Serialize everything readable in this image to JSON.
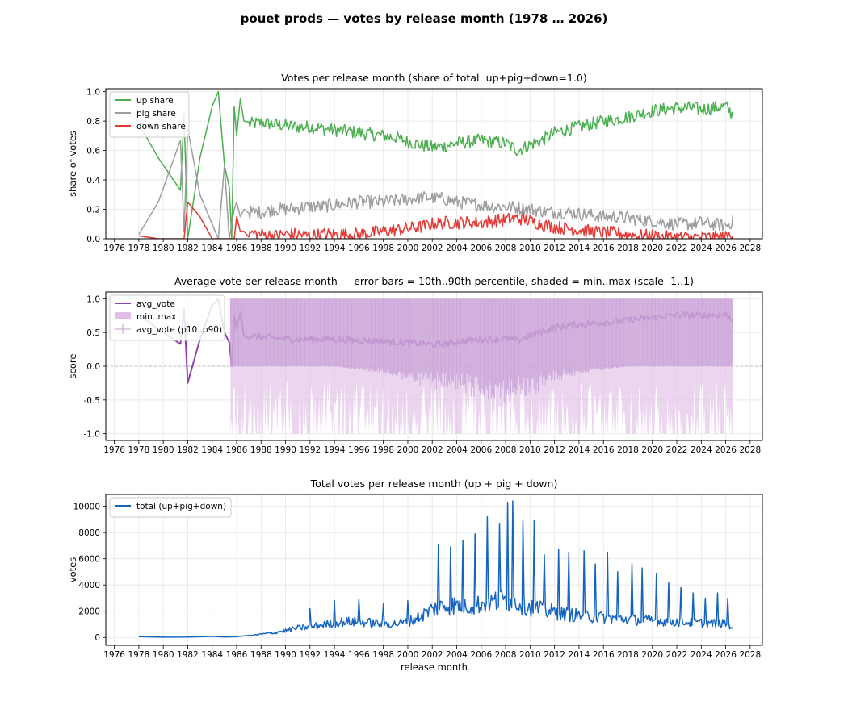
{
  "figure": {
    "suptitle": "pouet prods — votes by release month (1978 … 2026)"
  },
  "chart_data": [
    {
      "type": "line",
      "title": "Votes per release month (share of total: up+pig+down=1.0)",
      "xlabel": "",
      "ylabel": "share of votes",
      "xlim": [
        1975.3,
        2029.0
      ],
      "ylim": [
        0,
        1.02
      ],
      "xticks": [
        1976,
        1978,
        1980,
        1982,
        1984,
        1986,
        1988,
        1990,
        1992,
        1994,
        1996,
        1998,
        2000,
        2002,
        2004,
        2006,
        2008,
        2010,
        2012,
        2014,
        2016,
        2018,
        2020,
        2022,
        2024,
        2026,
        2028
      ],
      "yticks": [
        0.0,
        0.2,
        0.4,
        0.6,
        0.8,
        1.0
      ],
      "grid": true,
      "legend": "top-left",
      "series": [
        {
          "name": "up share",
          "color": "#4caf50",
          "x": [
            1978.0,
            1979.6,
            1981.4,
            1981.7,
            1982.0,
            1983.0,
            1984.0,
            1984.5,
            1985.0,
            1985.4,
            1985.6,
            1985.8,
            1986.0,
            1986.3,
            1986.6,
            1987.0,
            1988,
            1989,
            1990,
            1991,
            1992,
            1993,
            1994,
            1995,
            1996,
            1997,
            1998,
            1999,
            2000,
            2001,
            2002,
            2003,
            2004,
            2005,
            2006,
            2007,
            2008,
            2009,
            2010,
            2011,
            2012,
            2013,
            2014,
            2015,
            2016,
            2017,
            2018,
            2019,
            2020,
            2021,
            2022,
            2023,
            2024,
            2025,
            2026,
            2026.6
          ],
          "y": [
            0.78,
            0.55,
            0.33,
            0.85,
            0.0,
            0.55,
            0.9,
            1.0,
            0.5,
            0.35,
            0.0,
            0.9,
            0.7,
            0.95,
            0.8,
            0.78,
            0.79,
            0.78,
            0.77,
            0.76,
            0.76,
            0.75,
            0.74,
            0.73,
            0.72,
            0.71,
            0.7,
            0.69,
            0.66,
            0.64,
            0.62,
            0.63,
            0.65,
            0.66,
            0.67,
            0.66,
            0.65,
            0.6,
            0.64,
            0.67,
            0.72,
            0.74,
            0.76,
            0.78,
            0.8,
            0.81,
            0.83,
            0.85,
            0.87,
            0.88,
            0.89,
            0.89,
            0.88,
            0.89,
            0.9,
            0.84
          ]
        },
        {
          "name": "pig share",
          "color": "#9e9e9e",
          "x": [
            1978.0,
            1979.6,
            1981.4,
            1981.7,
            1982.0,
            1983.0,
            1984.0,
            1984.5,
            1985.0,
            1985.4,
            1985.6,
            1985.8,
            1986.0,
            1986.3,
            1986.6,
            1987.0,
            1988,
            1989,
            1990,
            1991,
            1992,
            1993,
            1994,
            1995,
            1996,
            1997,
            1998,
            1999,
            2000,
            2001,
            2002,
            2003,
            2004,
            2005,
            2006,
            2007,
            2008,
            2009,
            2010,
            2011,
            2012,
            2013,
            2014,
            2015,
            2016,
            2017,
            2018,
            2019,
            2020,
            2021,
            2022,
            2023,
            2024,
            2025,
            2026,
            2026.6
          ],
          "y": [
            0.03,
            0.25,
            0.67,
            0.05,
            0.75,
            0.3,
            0.1,
            0.0,
            0.5,
            0.0,
            0.1,
            0.2,
            0.25,
            0.15,
            0.2,
            0.18,
            0.18,
            0.2,
            0.2,
            0.21,
            0.22,
            0.22,
            0.23,
            0.24,
            0.25,
            0.25,
            0.25,
            0.26,
            0.27,
            0.28,
            0.28,
            0.27,
            0.25,
            0.24,
            0.23,
            0.22,
            0.22,
            0.21,
            0.2,
            0.19,
            0.18,
            0.18,
            0.17,
            0.16,
            0.15,
            0.15,
            0.14,
            0.13,
            0.12,
            0.11,
            0.1,
            0.1,
            0.11,
            0.1,
            0.09,
            0.12
          ]
        },
        {
          "name": "down share",
          "color": "#e53935",
          "x": [
            1978.0,
            1979.6,
            1981.4,
            1981.7,
            1982.0,
            1983.0,
            1984.0,
            1984.5,
            1985.0,
            1985.4,
            1985.6,
            1985.8,
            1986.0,
            1986.3,
            1986.6,
            1987.0,
            1988,
            1989,
            1990,
            1991,
            1992,
            1993,
            1994,
            1995,
            1996,
            1997,
            1998,
            1999,
            2000,
            2001,
            2002,
            2003,
            2004,
            2005,
            2006,
            2007,
            2008,
            2009,
            2010,
            2011,
            2012,
            2013,
            2014,
            2015,
            2016,
            2017,
            2018,
            2019,
            2020,
            2021,
            2022,
            2023,
            2024,
            2025,
            2026,
            2026.6
          ],
          "y": [
            0.02,
            0.0,
            0.0,
            0.0,
            0.25,
            0.15,
            0.0,
            0.0,
            0.0,
            0.0,
            0.0,
            0.0,
            0.15,
            0.05,
            0.05,
            0.04,
            0.03,
            0.02,
            0.03,
            0.03,
            0.02,
            0.03,
            0.03,
            0.03,
            0.03,
            0.04,
            0.05,
            0.06,
            0.07,
            0.08,
            0.1,
            0.11,
            0.11,
            0.11,
            0.11,
            0.12,
            0.13,
            0.14,
            0.12,
            0.1,
            0.08,
            0.07,
            0.06,
            0.05,
            0.04,
            0.04,
            0.03,
            0.02,
            0.02,
            0.01,
            0.01,
            0.01,
            0.01,
            0.01,
            0.01,
            0.04
          ]
        }
      ]
    },
    {
      "type": "line",
      "title": "Average vote per release month — error bars = 10th..90th percentile, shaded = min..max (scale -1..1)",
      "xlabel": "",
      "ylabel": "score",
      "xlim": [
        1975.3,
        2029.0
      ],
      "ylim": [
        -1.1,
        1.1
      ],
      "xticks": [
        1976,
        1978,
        1980,
        1982,
        1984,
        1986,
        1988,
        1990,
        1992,
        1994,
        1996,
        1998,
        2000,
        2002,
        2004,
        2006,
        2008,
        2010,
        2012,
        2014,
        2016,
        2018,
        2020,
        2022,
        2024,
        2026,
        2028
      ],
      "yticks": [
        -1.0,
        -0.5,
        0.0,
        0.5,
        1.0
      ],
      "grid": true,
      "legend": "top-left",
      "reference_line": 0.0,
      "series": [
        {
          "name": "avg_vote",
          "color": "#8e44ad",
          "x": [
            1978.0,
            1979.6,
            1981.4,
            1981.7,
            1982.0,
            1983.0,
            1984.0,
            1984.5,
            1985.0,
            1985.4,
            1985.6,
            1985.8,
            1986.0,
            1986.3,
            1986.6,
            1987.0,
            1988,
            1989,
            1990,
            1991,
            1992,
            1993,
            1994,
            1995,
            1996,
            1997,
            1998,
            1999,
            2000,
            2001,
            2002,
            2003,
            2004,
            2005,
            2006,
            2007,
            2008,
            2009,
            2010,
            2011,
            2012,
            2013,
            2014,
            2015,
            2016,
            2017,
            2018,
            2019,
            2020,
            2021,
            2022,
            2023,
            2024,
            2025,
            2026,
            2026.6
          ],
          "y": [
            0.76,
            0.55,
            0.33,
            0.85,
            -0.25,
            0.4,
            0.9,
            1.0,
            0.5,
            0.35,
            0.0,
            0.75,
            0.55,
            0.8,
            0.45,
            0.45,
            0.43,
            0.42,
            0.4,
            0.4,
            0.4,
            0.4,
            0.4,
            0.39,
            0.38,
            0.38,
            0.37,
            0.36,
            0.35,
            0.34,
            0.32,
            0.33,
            0.36,
            0.38,
            0.4,
            0.4,
            0.41,
            0.38,
            0.45,
            0.52,
            0.57,
            0.6,
            0.62,
            0.63,
            0.65,
            0.66,
            0.68,
            0.7,
            0.72,
            0.74,
            0.76,
            0.76,
            0.75,
            0.76,
            0.76,
            0.7
          ]
        },
        {
          "name": "min..max",
          "color": "#e1bee7",
          "x": [
            1985.5,
            1986,
            1988,
            1990,
            1992,
            1994,
            1996,
            1998,
            2000,
            2002,
            2004,
            2006,
            2008,
            2010,
            2012,
            2014,
            2016,
            2018,
            2020,
            2022,
            2024,
            2026,
            2026.6
          ],
          "low": [
            -1.0,
            -1.0,
            -1.0,
            -1.0,
            -1.0,
            -1.0,
            -1.0,
            -1.0,
            -1.0,
            -1.0,
            -1.0,
            -1.0,
            -1.0,
            -1.0,
            -1.0,
            -1.0,
            -1.0,
            -1.0,
            -1.0,
            -1.0,
            -1.0,
            -1.0,
            -1.0
          ],
          "high": [
            1.0,
            1.0,
            1.0,
            1.0,
            1.0,
            1.0,
            1.0,
            1.0,
            1.0,
            1.0,
            1.0,
            1.0,
            1.0,
            1.0,
            1.0,
            1.0,
            1.0,
            1.0,
            1.0,
            1.0,
            1.0,
            1.0,
            1.0
          ]
        },
        {
          "name": "avg_vote (p10..p90)",
          "color": "#c39bd3",
          "x": [
            1985.5,
            1986,
            1988,
            1990,
            1992,
            1994,
            1996,
            1998,
            2000,
            2002,
            2004,
            2006,
            2008,
            2010,
            2012,
            2014,
            2016,
            2018,
            2020,
            2022,
            2024,
            2026,
            2026.6
          ],
          "low": [
            0.0,
            0.0,
            0.0,
            0.0,
            0.0,
            0.0,
            -0.05,
            -0.1,
            -0.2,
            -0.3,
            -0.35,
            -0.4,
            -0.45,
            -0.4,
            -0.2,
            -0.1,
            -0.05,
            0.0,
            0.0,
            0.0,
            0.0,
            0.0,
            0.0
          ],
          "high": [
            1.0,
            1.0,
            1.0,
            1.0,
            1.0,
            1.0,
            1.0,
            1.0,
            1.0,
            1.0,
            1.0,
            1.0,
            1.0,
            1.0,
            1.0,
            1.0,
            1.0,
            1.0,
            1.0,
            1.0,
            1.0,
            1.0,
            1.0
          ]
        }
      ]
    },
    {
      "type": "line",
      "title": "Total votes per release month (up + pig + down)",
      "xlabel": "release month",
      "ylabel": "votes",
      "xlim": [
        1975.3,
        2029.0
      ],
      "ylim": [
        -600,
        10900
      ],
      "xticks": [
        1976,
        1978,
        1980,
        1982,
        1984,
        1986,
        1988,
        1990,
        1992,
        1994,
        1996,
        1998,
        2000,
        2002,
        2004,
        2006,
        2008,
        2010,
        2012,
        2014,
        2016,
        2018,
        2020,
        2022,
        2024,
        2026,
        2028
      ],
      "yticks": [
        0,
        2000,
        4000,
        6000,
        8000,
        10000
      ],
      "grid": true,
      "legend": "top-left",
      "series": [
        {
          "name": "total (up+pig+down)",
          "color": "#1565c0",
          "x": [
            1978.0,
            1980,
            1982,
            1984,
            1985,
            1986,
            1987,
            1988,
            1989,
            1990,
            1991,
            1992,
            1993,
            1994,
            1995,
            1996,
            1997,
            1998,
            1999,
            2000,
            2001,
            2002,
            2003,
            2004,
            2005,
            2006,
            2007,
            2008,
            2009,
            2010,
            2011,
            2012,
            2013,
            2014,
            2015,
            2016,
            2017,
            2018,
            2019,
            2020,
            2021,
            2022,
            2023,
            2024,
            2025,
            2026,
            2026.6
          ],
          "y": [
            60,
            20,
            30,
            80,
            40,
            60,
            150,
            300,
            450,
            650,
            900,
            1000,
            1200,
            1400,
            1500,
            1500,
            1400,
            1300,
            1300,
            1500,
            2000,
            2700,
            3000,
            3100,
            3000,
            3200,
            3400,
            3600,
            3300,
            2900,
            2600,
            2400,
            2200,
            2100,
            2000,
            1900,
            1850,
            1750,
            1650,
            1600,
            1550,
            1500,
            1450,
            1400,
            1350,
            1300,
            1000
          ],
          "peaks": [
            [
              1992.0,
              2200
            ],
            [
              1994.0,
              2800
            ],
            [
              1996.0,
              2900
            ],
            [
              1998.0,
              2600
            ],
            [
              2000.0,
              2800
            ],
            [
              2002.5,
              7100
            ],
            [
              2003.5,
              6900
            ],
            [
              2004.5,
              7400
            ],
            [
              2005.5,
              7900
            ],
            [
              2006.5,
              9200
            ],
            [
              2007.5,
              8700
            ],
            [
              2008.2,
              10300
            ],
            [
              2008.6,
              10400
            ],
            [
              2009.4,
              8900
            ],
            [
              2010.3,
              8900
            ],
            [
              2011.2,
              6300
            ],
            [
              2012.3,
              6700
            ],
            [
              2013.2,
              6500
            ],
            [
              2014.4,
              6600
            ],
            [
              2015.3,
              5600
            ],
            [
              2016.3,
              6500
            ],
            [
              2017.2,
              5000
            ],
            [
              2018.3,
              5600
            ],
            [
              2019.2,
              5300
            ],
            [
              2020.3,
              4900
            ],
            [
              2021.3,
              4200
            ],
            [
              2022.3,
              3800
            ],
            [
              2023.3,
              3400
            ],
            [
              2024.3,
              3000
            ],
            [
              2025.3,
              3400
            ],
            [
              2026.2,
              3000
            ]
          ]
        }
      ]
    }
  ]
}
